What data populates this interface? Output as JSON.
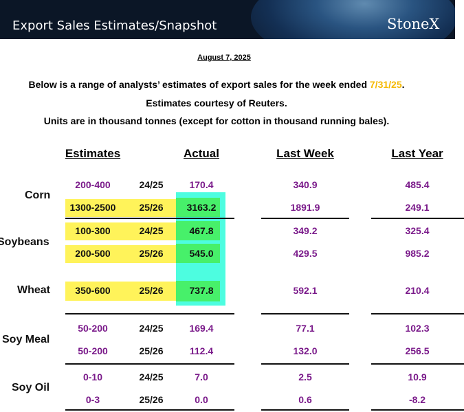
{
  "header": {
    "title": "Export Sales Estimates/Snapshot",
    "logo": "StoneX"
  },
  "report_date": "August 7, 2025",
  "intro": {
    "line1_prefix": "Below is a range of analysts’ estimates of export sales for the week ended ",
    "week_ended": "7/31/25",
    "line1_suffix": ".",
    "line2": "Estimates courtesy of Reuters.",
    "line3": "Units are in thousand tonnes (except for cotton in thousand running bales)."
  },
  "columns": {
    "estimates": "Estimates",
    "actual": "Actual",
    "last_week": "Last Week",
    "last_year": "Last Year"
  },
  "commodities": [
    {
      "name": "Corn",
      "rows": [
        {
          "estimate": "200-400",
          "year": "24/25",
          "actual": "170.4",
          "last_week": "340.9",
          "last_year": "485.4"
        },
        {
          "estimate": "1300-2500",
          "year": "25/26",
          "actual": "3163.2",
          "last_week": "1891.9",
          "last_year": "249.1"
        }
      ]
    },
    {
      "name": "Soybeans",
      "rows": [
        {
          "estimate": "100-300",
          "year": "24/25",
          "actual": "467.8",
          "last_week": "349.2",
          "last_year": "325.4"
        },
        {
          "estimate": "200-500",
          "year": "25/26",
          "actual": "545.0",
          "last_week": "429.5",
          "last_year": "985.2"
        }
      ]
    },
    {
      "name": "Wheat",
      "rows": [
        {
          "estimate": "350-600",
          "year": "25/26",
          "actual": "737.8",
          "last_week": "592.1",
          "last_year": "210.4"
        }
      ]
    },
    {
      "name": "Soy Meal",
      "rows": [
        {
          "estimate": "50-200",
          "year": "24/25",
          "actual": "169.4",
          "last_week": "77.1",
          "last_year": "102.3"
        },
        {
          "estimate": "50-200",
          "year": "25/26",
          "actual": "112.4",
          "last_week": "132.0",
          "last_year": "256.5"
        }
      ]
    },
    {
      "name": "Soy Oil",
      "rows": [
        {
          "estimate": "0-10",
          "year": "24/25",
          "actual": "7.0",
          "last_week": "2.5",
          "last_year": "10.9"
        },
        {
          "estimate": "0-3",
          "year": "25/26",
          "actual": "0.0",
          "last_week": "0.6",
          "last_year": "-8.2"
        }
      ]
    }
  ]
}
